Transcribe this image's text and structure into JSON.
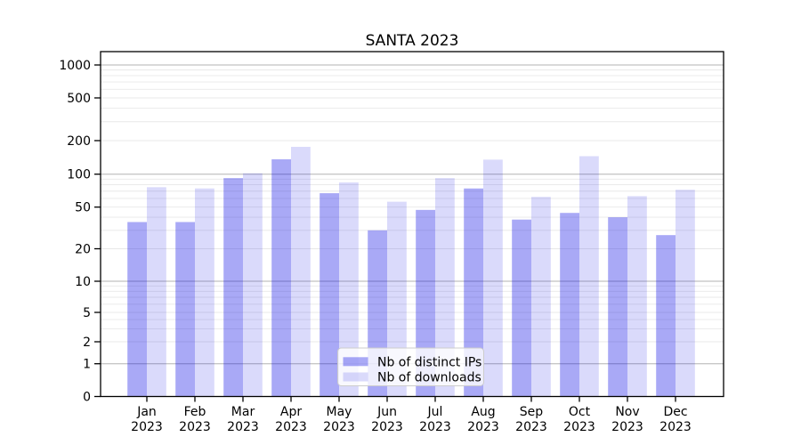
{
  "chart_data": {
    "type": "bar",
    "title": "SANTA 2023",
    "xlabel": "",
    "ylabel": "",
    "year_label": "2023",
    "categories": [
      "Jan",
      "Feb",
      "Mar",
      "Apr",
      "May",
      "Jun",
      "Jul",
      "Aug",
      "Sep",
      "Oct",
      "Nov",
      "Dec"
    ],
    "series": [
      {
        "name": "Nb of distinct IPs",
        "values": [
          36,
          36,
          92,
          136,
          67,
          30,
          47,
          74,
          38,
          44,
          40,
          27
        ]
      },
      {
        "name": "Nb of downloads",
        "values": [
          76,
          74,
          102,
          176,
          84,
          56,
          92,
          135,
          62,
          145,
          63,
          72
        ]
      }
    ],
    "yscale": "symlog",
    "yticks": [
      0,
      1,
      2,
      5,
      10,
      20,
      50,
      100,
      200,
      500,
      1000
    ],
    "ylim": [
      0,
      1000
    ],
    "grid": true,
    "legend_position": "lower-center",
    "colors": {
      "bar_distinct_ips": "rgba(10,10,230,0.35)",
      "bar_downloads": "rgba(10,10,230,0.15)",
      "grid_major": "#b3b3b3",
      "grid_minor": "#e8e8e8",
      "spine": "#000000",
      "legend_border": "#cccccc",
      "legend_bg": "rgba(255,255,255,0.8)"
    }
  }
}
